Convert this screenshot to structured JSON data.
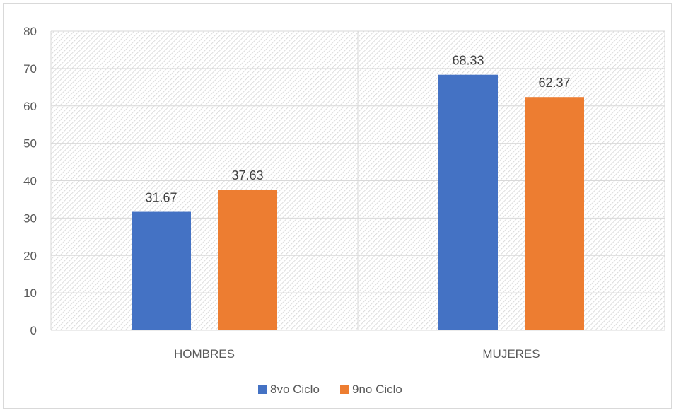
{
  "chart_data": {
    "type": "bar",
    "categories": [
      "HOMBRES",
      "MUJERES"
    ],
    "series": [
      {
        "name": "8vo Ciclo",
        "values": [
          31.67,
          68.33
        ],
        "color": "#4472C4"
      },
      {
        "name": "9no Ciclo",
        "values": [
          37.63,
          62.37
        ],
        "color": "#ED7D31"
      }
    ],
    "ylim": [
      0,
      80
    ],
    "yticks": [
      0,
      10,
      20,
      30,
      40,
      50,
      60,
      70,
      80
    ],
    "grid": true,
    "legend_position": "bottom",
    "data_labels": [
      "31.67",
      "37.63",
      "68.33",
      "62.37"
    ],
    "tick_labels": [
      "0",
      "10",
      "20",
      "30",
      "40",
      "50",
      "60",
      "70",
      "80"
    ]
  }
}
